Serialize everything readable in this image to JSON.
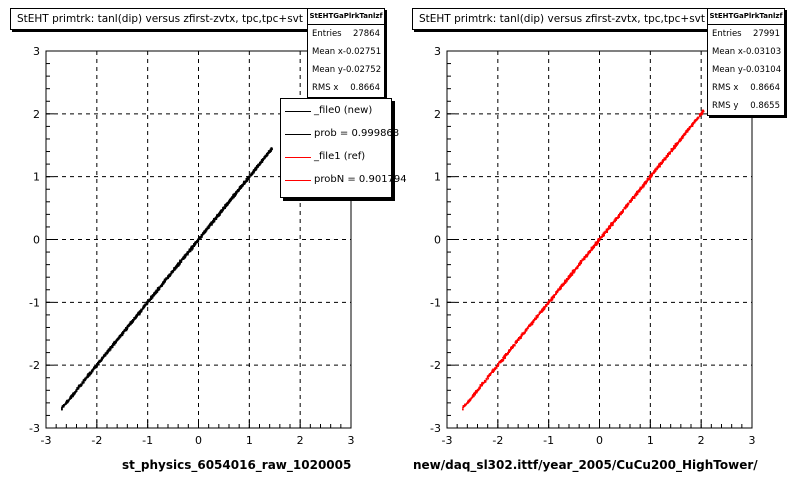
{
  "chart_data": [
    {
      "type": "scatter",
      "title": "StEHT primtrk: tanl(dip) versus zfirst-zvtx, tpc,tpc+svt",
      "xlabel": "st_physics_6054016_raw_1020005",
      "ylabel": "",
      "xlim": [
        -3,
        3
      ],
      "ylim": [
        -3,
        3
      ],
      "xticks": [
        "-3",
        "-2",
        "-1",
        "0",
        "1",
        "2",
        "3"
      ],
      "yticks": [
        "-3",
        "-2",
        "-1",
        "0",
        "1",
        "2",
        "3"
      ],
      "grid": true,
      "series": [
        {
          "name": "_file0 (new)",
          "color": "#000000",
          "x_range": [
            -2.7,
            1.45
          ],
          "slope": 1.0
        }
      ],
      "stats": {
        "name": "StEHTGaPlrkTanlzf",
        "rows": [
          {
            "label": "Entries",
            "value": "27864"
          },
          {
            "label": "Mean x",
            "value": "-0.02751"
          },
          {
            "label": "Mean y",
            "value": "-0.02752"
          },
          {
            "label": "RMS x",
            "value": "0.8664"
          }
        ]
      },
      "legend": [
        {
          "label": "_file0 (new)",
          "color": "#000000"
        },
        {
          "label": "prob = 0.999868",
          "color": "#000000"
        },
        {
          "label": "_file1 (ref)",
          "color": "#ff0000"
        },
        {
          "label": "probN = 0.901794",
          "color": "#ff0000"
        }
      ]
    },
    {
      "type": "scatter",
      "title": "StEHT primtrk: tanl(dip) versus zfirst-zvtx, tpc,tpc+svt",
      "xlabel": "new/daq_sl302.ittf/year_2005/CuCu200_HighTower/",
      "ylabel": "",
      "xlim": [
        -3,
        3
      ],
      "ylim": [
        -3,
        3
      ],
      "xticks": [
        "-3",
        "-2",
        "-1",
        "0",
        "1",
        "2",
        "3"
      ],
      "yticks": [
        "-3",
        "-2",
        "-1",
        "0",
        "1",
        "2",
        "3"
      ],
      "grid": true,
      "series": [
        {
          "name": "_file1 (ref)",
          "color": "#ff0000",
          "x_range": [
            -2.7,
            2.05
          ],
          "slope": 1.0
        }
      ],
      "stats": {
        "name": "StEHTGaPlrkTanlzf",
        "rows": [
          {
            "label": "Entries",
            "value": "27991"
          },
          {
            "label": "Mean x",
            "value": "-0.03103"
          },
          {
            "label": "Mean y",
            "value": "-0.03104"
          },
          {
            "label": "RMS x",
            "value": "0.8664"
          },
          {
            "label": "RMS y",
            "value": "0.8655"
          }
        ]
      }
    }
  ]
}
